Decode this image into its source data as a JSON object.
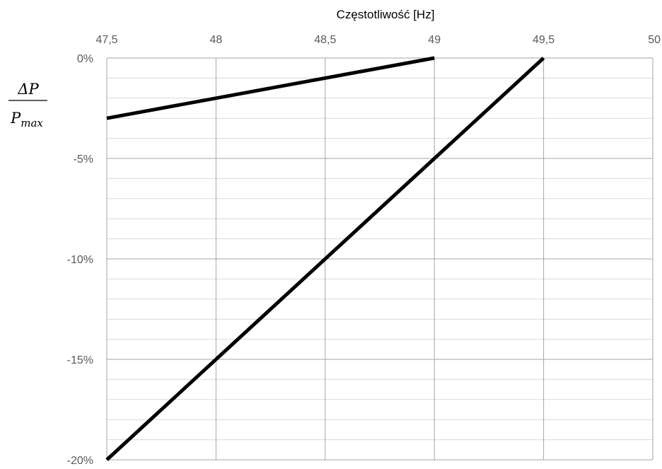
{
  "chart_data": {
    "type": "line",
    "title": "",
    "xlabel": "Częstotliwość [Hz]",
    "ylabel": {
      "numerator": "ΔP",
      "denominator_base": "P",
      "denominator_sub": "max"
    },
    "x_axis_position": "top",
    "xlim": [
      47.5,
      50
    ],
    "ylim": [
      -20,
      0
    ],
    "x_ticks": [
      47.5,
      48,
      48.5,
      49,
      49.5,
      50
    ],
    "x_tick_labels": [
      "47,5",
      "48",
      "48,5",
      "49",
      "49,5",
      "50"
    ],
    "y_ticks": [
      0,
      -5,
      -10,
      -15,
      -20
    ],
    "y_tick_labels": [
      "0%",
      "-5%",
      "-10%",
      "-15%",
      "-20%"
    ],
    "y_minor_step": 1,
    "grid": true,
    "legend": "none",
    "series": [
      {
        "x": [
          47.5,
          49
        ],
        "y": [
          -3,
          0
        ],
        "color": "#000000"
      },
      {
        "x": [
          47.5,
          49.5
        ],
        "y": [
          -20,
          0
        ],
        "color": "#000000"
      }
    ],
    "colors": {
      "grid_major": "#a6a6a6",
      "grid_minor": "#d9d9d9",
      "axis": "#a6a6a6",
      "tick_text": "#595959",
      "line": "#000000"
    }
  }
}
